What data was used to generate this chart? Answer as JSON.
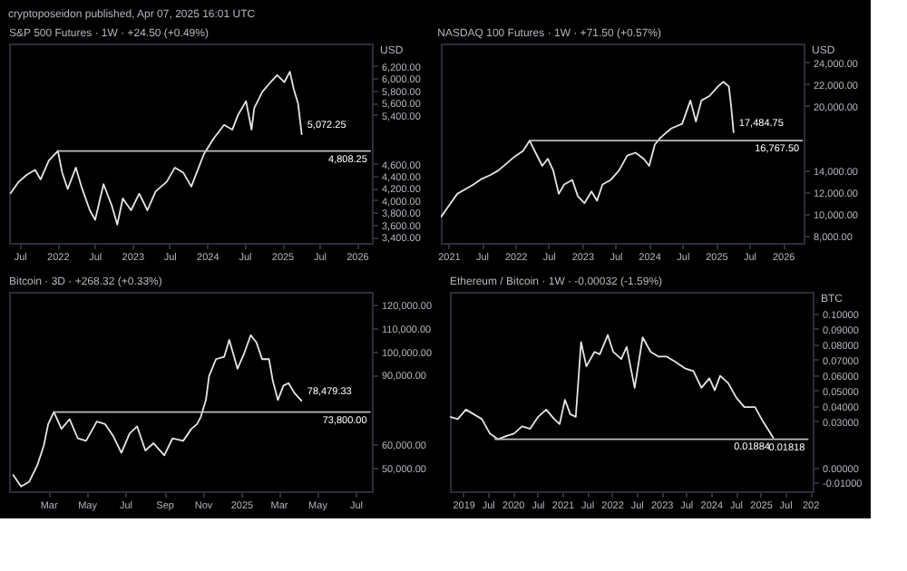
{
  "chart_data": [
    {
      "type": "line",
      "title": "S&P 500 Futures · 1W · +24.50 (+0.49%)",
      "ylabel": "USD",
      "xlim": [
        "2021-05-10",
        "2026-03-15"
      ],
      "xticks": [
        {
          "value": "2021-07-01",
          "label": "Jul"
        },
        {
          "value": "2022-01-01",
          "label": "2022"
        },
        {
          "value": "2022-07-01",
          "label": "Jul"
        },
        {
          "value": "2023-01-01",
          "label": "2023"
        },
        {
          "value": "2023-07-01",
          "label": "Jul"
        },
        {
          "value": "2024-01-01",
          "label": "2024"
        },
        {
          "value": "2024-07-01",
          "label": "Jul"
        },
        {
          "value": "2025-01-01",
          "label": "2025"
        },
        {
          "value": "2025-07-01",
          "label": "Jul"
        },
        {
          "value": "2026-01-01",
          "label": "2026"
        }
      ],
      "ylim": [
        3300,
        6570
      ],
      "yticks": [
        {
          "value": 3400,
          "label": "3,400.00"
        },
        {
          "value": 3600,
          "label": "3,600.00"
        },
        {
          "value": 3800,
          "label": "3,800.00"
        },
        {
          "value": 4000,
          "label": "4,000.00"
        },
        {
          "value": 4200,
          "label": "4,200.00"
        },
        {
          "value": 4400,
          "label": "4,400.00"
        },
        {
          "value": 4600,
          "label": "4,600.00"
        },
        {
          "value": 5400,
          "label": "5,400.00"
        },
        {
          "value": 5600,
          "label": "5,600.00"
        },
        {
          "value": 5800,
          "label": "5,800.00"
        },
        {
          "value": 6000,
          "label": "6,000.00"
        },
        {
          "value": 6200,
          "label": "6,200.00"
        }
      ],
      "series": [
        {
          "color": "#e6e6e6",
          "x": [
            "2021-05-16",
            "2021-06-26",
            "2021-08-05",
            "2021-09-14",
            "2021-10-11",
            "2021-11-20",
            "2022-01-03",
            "2022-01-24",
            "2022-02-20",
            "2022-04-01",
            "2022-04-28",
            "2022-06-08",
            "2022-07-04",
            "2022-08-14",
            "2022-09-23",
            "2022-10-20",
            "2022-11-16",
            "2022-12-26",
            "2023-02-04",
            "2023-03-16",
            "2023-04-25",
            "2023-06-18",
            "2023-07-28",
            "2023-09-06",
            "2023-10-16",
            "2023-11-12",
            "2023-12-16",
            "2024-01-31",
            "2024-03-24",
            "2024-05-03",
            "2024-05-30",
            "2024-07-09",
            "2024-08-05",
            "2024-08-18",
            "2024-09-27",
            "2024-11-06",
            "2024-12-08",
            "2025-01-12",
            "2025-02-08",
            "2025-02-27",
            "2025-03-20",
            "2025-04-07"
          ],
          "values": [
            4107,
            4302,
            4418,
            4496,
            4341,
            4652,
            4808.25,
            4457,
            4185,
            4535,
            4224,
            3835,
            3679,
            4263,
            3913,
            3601,
            4029,
            3835,
            4107,
            3835,
            4146,
            4302,
            4535,
            4457,
            4224,
            4457,
            4753,
            5002,
            5235,
            5157,
            5391,
            5624,
            5157,
            5508,
            5780,
            5935,
            6052,
            5935,
            6107,
            5819,
            5585,
            5072.25
          ]
        },
        {
          "color": "#bdbdbd",
          "x": [
            "2022-01-03",
            "2026-03-10"
          ],
          "values": [
            4808.25,
            4808.25
          ]
        }
      ],
      "annotations": [
        "cryptoposeidon published, Apr 07, 2025 16:01 UTC",
        {
          "text": "5,072.25",
          "x": "2025-04-07",
          "y": 5072.25
        },
        {
          "text": "4,808.25",
          "x": "2026-03-10",
          "y": 4808.25
        }
      ]
    },
    {
      "type": "line",
      "title": "NASDAQ 100 Futures · 1W · +71.50 (+0.57%)",
      "ylabel": "USD",
      "xlim": [
        "2020-11-20",
        "2026-04-24"
      ],
      "xticks": [
        {
          "value": "2021-01-01",
          "label": "2021"
        },
        {
          "value": "2021-07-01",
          "label": "Jul"
        },
        {
          "value": "2022-01-01",
          "label": "2022"
        },
        {
          "value": "2022-07-01",
          "label": "Jul"
        },
        {
          "value": "2023-01-01",
          "label": "2023"
        },
        {
          "value": "2023-07-01",
          "label": "Jul"
        },
        {
          "value": "2024-01-01",
          "label": "2024"
        },
        {
          "value": "2024-07-01",
          "label": "Jul"
        },
        {
          "value": "2025-01-01",
          "label": "2025"
        },
        {
          "value": "2025-07-01",
          "label": "Jul"
        },
        {
          "value": "2026-01-01",
          "label": "2026"
        }
      ],
      "ylim": [
        7350,
        25720
      ],
      "yticks": [
        {
          "value": 8000,
          "label": "8,000.00"
        },
        {
          "value": 10000,
          "label": "10,000.00"
        },
        {
          "value": 12000,
          "label": "12,000.00"
        },
        {
          "value": 14000,
          "label": "14,000.00"
        },
        {
          "value": 20000,
          "label": "20,000.00"
        },
        {
          "value": 22000,
          "label": "22,000.00"
        },
        {
          "value": 24000,
          "label": "24,000.00"
        }
      ],
      "series": [
        {
          "color": "#e6e6e6",
          "x": [
            "2020-11-20",
            "2021-01-04",
            "2021-02-18",
            "2021-04-03",
            "2021-05-18",
            "2021-07-02",
            "2021-08-16",
            "2021-09-30",
            "2021-11-14",
            "2021-12-29",
            "2022-02-12",
            "2022-03-20",
            "2022-04-19",
            "2022-05-28",
            "2022-06-27",
            "2022-07-27",
            "2022-08-26",
            "2022-09-25",
            "2022-11-08",
            "2022-12-08",
            "2023-01-13",
            "2023-02-21",
            "2023-03-23",
            "2023-04-22",
            "2023-06-06",
            "2023-07-21",
            "2023-09-04",
            "2023-10-19",
            "2023-12-03",
            "2024-01-02",
            "2024-02-01",
            "2024-03-02",
            "2024-05-01",
            "2024-06-30",
            "2024-08-14",
            "2024-09-13",
            "2024-10-13",
            "2024-11-27",
            "2025-01-11",
            "2025-02-10",
            "2025-03-12",
            "2025-03-25",
            "2025-04-07"
          ],
          "values": [
            9720,
            10800,
            11870,
            12300,
            12730,
            13250,
            13590,
            14020,
            14670,
            15310,
            15830,
            16767.5,
            15740,
            14450,
            15100,
            14020,
            11870,
            12730,
            13160,
            11660,
            11010,
            12090,
            11230,
            12730,
            13160,
            14020,
            15400,
            15660,
            15100,
            14450,
            16390,
            17030,
            17890,
            18320,
            20470,
            18540,
            20470,
            20900,
            21760,
            22190,
            21760,
            19830,
            17484.75
          ]
        },
        {
          "color": "#bdbdbd",
          "x": [
            "2022-03-20",
            "2026-04-20"
          ],
          "values": [
            16767.5,
            16767.5
          ]
        }
      ],
      "annotations": [
        {
          "text": "17,484.75",
          "x": "2025-04-07",
          "y": 17484.75
        },
        {
          "text": "16,767.50",
          "x": "2026-04-20",
          "y": 16767.5
        }
      ]
    },
    {
      "type": "line",
      "title": "Bitcoin · 3D · +268.32 (+0.33%)",
      "xlim": [
        "2023-12-30",
        "2025-07-27"
      ],
      "xticks": [
        {
          "value": "2024-03-01",
          "label": "Mar"
        },
        {
          "value": "2024-05-01",
          "label": "May"
        },
        {
          "value": "2024-07-01",
          "label": "Jul"
        },
        {
          "value": "2024-09-01",
          "label": "Sep"
        },
        {
          "value": "2024-11-01",
          "label": "Nov"
        },
        {
          "value": "2025-01-01",
          "label": "2025"
        },
        {
          "value": "2025-03-01",
          "label": "Mar"
        },
        {
          "value": "2025-05-01",
          "label": "May"
        },
        {
          "value": "2025-07-01",
          "label": "Jul"
        }
      ],
      "ylim": [
        39700,
        125600
      ],
      "yticks": [
        {
          "value": 50000,
          "label": "50,000.00"
        },
        {
          "value": 60000,
          "label": "60,000.00"
        },
        {
          "value": 90000,
          "label": "90,000.00"
        },
        {
          "value": 100000,
          "label": "100,000.00"
        },
        {
          "value": 110000,
          "label": "110,000.00"
        },
        {
          "value": 120000,
          "label": "120,000.00"
        }
      ],
      "series": [
        {
          "color": "#e6e6e6",
          "x": [
            "2024-01-05",
            "2024-01-18",
            "2024-01-31",
            "2024-02-13",
            "2024-02-23",
            "2024-03-01",
            "2024-03-10",
            "2024-03-22",
            "2024-04-04",
            "2024-04-17",
            "2024-04-30",
            "2024-05-17",
            "2024-05-30",
            "2024-06-12",
            "2024-06-25",
            "2024-07-08",
            "2024-07-20",
            "2024-08-02",
            "2024-08-15",
            "2024-09-01",
            "2024-09-14",
            "2024-10-01",
            "2024-10-14",
            "2024-10-23",
            "2024-10-29",
            "2024-11-06",
            "2024-11-11",
            "2024-11-22",
            "2024-12-05",
            "2024-12-13",
            "2024-12-26",
            "2025-01-05",
            "2025-01-16",
            "2025-01-25",
            "2025-02-03",
            "2025-02-14",
            "2025-02-20",
            "2025-02-28",
            "2025-03-09",
            "2025-03-17",
            "2025-03-26",
            "2025-04-07"
          ],
          "values": [
            46930,
            41750,
            43820,
            51070,
            59350,
            68660,
            73800,
            66590,
            70730,
            62450,
            61420,
            69700,
            68660,
            63490,
            56240,
            64520,
            67630,
            57280,
            60380,
            55210,
            62450,
            61420,
            66590,
            68660,
            71770,
            79010,
            89360,
            96610,
            97640,
            104890,
            92470,
            98680,
            106960,
            103850,
            96610,
            96610,
            87290,
            79010,
            85220,
            86260,
            82120,
            78479.33
          ]
        },
        {
          "color": "#bdbdbd",
          "x": [
            "2024-03-10",
            "2025-07-25"
          ],
          "values": [
            73800,
            73800
          ]
        }
      ],
      "annotations": [
        {
          "text": "78,479.33",
          "x": "2025-04-07",
          "y": 78479.33
        },
        {
          "text": "73,800.00",
          "x": "2025-07-25",
          "y": 73800
        }
      ]
    },
    {
      "type": "line",
      "title": "Ethereum / Bitcoin · 1W · -0.00032 (-1.59%)",
      "ylabel": "BTC",
      "xlim": [
        "2018-09-25",
        "2026-01-20"
      ],
      "xticks": [
        {
          "value": "2019-01-01",
          "label": "2019"
        },
        {
          "value": "2019-07-01",
          "label": "Jul"
        },
        {
          "value": "2020-01-01",
          "label": "2020"
        },
        {
          "value": "2020-07-01",
          "label": "Jul"
        },
        {
          "value": "2021-01-01",
          "label": "2021"
        },
        {
          "value": "2021-07-01",
          "label": "Jul"
        },
        {
          "value": "2022-01-01",
          "label": "2022"
        },
        {
          "value": "2022-07-01",
          "label": "Jul"
        },
        {
          "value": "2023-01-01",
          "label": "2023"
        },
        {
          "value": "2023-07-01",
          "label": "Jul"
        },
        {
          "value": "2024-01-01",
          "label": "2024"
        },
        {
          "value": "2024-07-01",
          "label": "Jul"
        },
        {
          "value": "2025-01-01",
          "label": "2025"
        },
        {
          "value": "2025-07-01",
          "label": "Jul"
        },
        {
          "value": "2026-01-01",
          "label": "202"
        }
      ],
      "ylim": [
        -0.0156,
        0.114
      ],
      "yticks": [
        {
          "value": -0.01,
          "label": "-0.01000"
        },
        {
          "value": 0,
          "label": "0.00000"
        },
        {
          "value": 0.03,
          "label": "0.03000"
        },
        {
          "value": 0.04,
          "label": "0.04000"
        },
        {
          "value": 0.05,
          "label": "0.05000"
        },
        {
          "value": 0.06,
          "label": "0.06000"
        },
        {
          "value": 0.07,
          "label": "0.07000"
        },
        {
          "value": 0.08,
          "label": "0.08000"
        },
        {
          "value": 0.09,
          "label": "0.09000"
        },
        {
          "value": 0.1,
          "label": "0.10000"
        }
      ],
      "series": [
        {
          "color": "#e6e6e6",
          "x": [
            "2018-09-25",
            "2018-11-23",
            "2019-01-21",
            "2019-03-21",
            "2019-05-19",
            "2019-07-17",
            "2019-09-15",
            "2019-11-13",
            "2020-01-11",
            "2020-03-10",
            "2020-05-09",
            "2020-07-07",
            "2020-09-04",
            "2020-11-02",
            "2020-12-12",
            "2021-01-20",
            "2021-03-01",
            "2021-04-10",
            "2021-05-19",
            "2021-06-27",
            "2021-08-26",
            "2021-10-04",
            "2021-12-02",
            "2022-01-11",
            "2022-03-11",
            "2022-04-20",
            "2022-06-18",
            "2022-08-16",
            "2022-10-14",
            "2022-12-12",
            "2023-02-09",
            "2023-04-09",
            "2023-06-27",
            "2023-08-25",
            "2023-10-23",
            "2023-12-21",
            "2024-01-29",
            "2024-03-09",
            "2024-05-07",
            "2024-07-06",
            "2024-09-03",
            "2024-11-21",
            "2025-01-19",
            "2025-04-07"
          ],
          "values": [
            0.0328,
            0.0313,
            0.0375,
            0.0344,
            0.0313,
            0.0219,
            0.01818,
            0.0203,
            0.0219,
            0.0266,
            0.025,
            0.0328,
            0.0375,
            0.0313,
            0.0281,
            0.0438,
            0.0344,
            0.0328,
            0.0813,
            0.0656,
            0.075,
            0.0734,
            0.0859,
            0.075,
            0.0703,
            0.0781,
            0.0516,
            0.0844,
            0.075,
            0.0719,
            0.0719,
            0.0688,
            0.0641,
            0.0625,
            0.0516,
            0.0578,
            0.05,
            0.0594,
            0.0547,
            0.0453,
            0.0391,
            0.0391,
            0.0297,
            0.01884
          ]
        },
        {
          "color": "#bdbdbd",
          "x": [
            "2019-08-20",
            "2025-12-20"
          ],
          "values": [
            0.01818,
            0.01818
          ]
        }
      ],
      "annotations": [
        {
          "text": "0.01884",
          "x": "2025-04-07",
          "y": 0.01884
        },
        {
          "text": "0.01818",
          "x": "2025-12-20",
          "y": 0.01818
        }
      ]
    }
  ]
}
